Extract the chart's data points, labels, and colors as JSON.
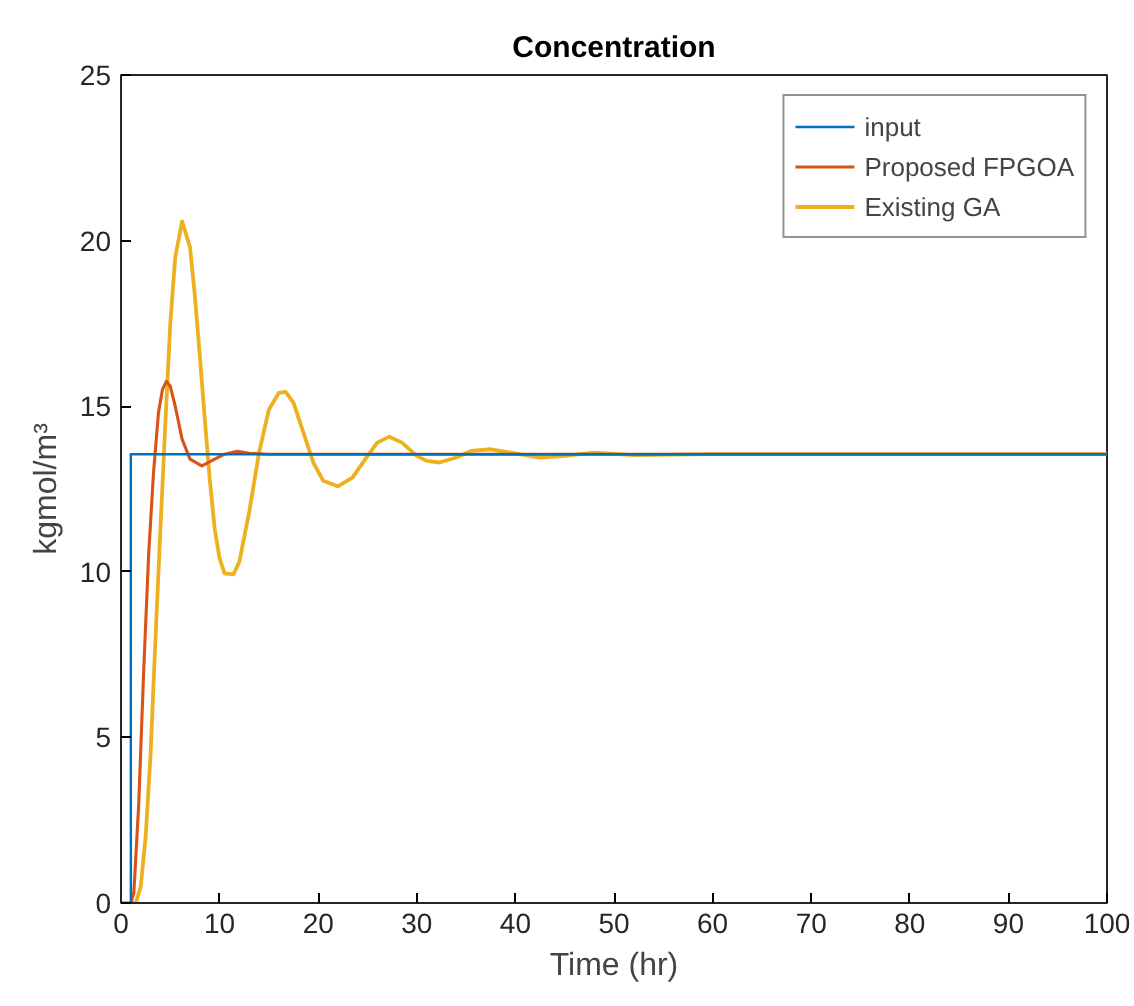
{
  "chart_data": {
    "type": "line",
    "title": "Concentration",
    "xlabel": "Time (hr)",
    "ylabel": "kgmol/m³",
    "xlim": [
      0,
      100
    ],
    "ylim": [
      0,
      25
    ],
    "xticks": [
      0,
      10,
      20,
      30,
      40,
      50,
      60,
      70,
      80,
      90,
      100
    ],
    "yticks": [
      0,
      5,
      10,
      15,
      20,
      25
    ],
    "grid": false,
    "legend": "top right",
    "marker": "none",
    "line_style": "solid",
    "series": [
      {
        "name": "input",
        "color": "#0072bd",
        "x": [
          1,
          1,
          100
        ],
        "values": [
          0,
          13.55,
          13.55
        ]
      },
      {
        "name": "Proposed FPGOA",
        "color": "#d95319",
        "x": [
          1,
          1.3,
          1.8,
          2.3,
          2.8,
          3.3,
          3.8,
          4.2,
          4.6,
          5.0,
          5.5,
          6.2,
          7,
          8.2,
          9.5,
          10.5,
          11.8,
          13,
          15,
          100
        ],
        "values": [
          0,
          0.3,
          3,
          7,
          10.5,
          13,
          14.8,
          15.5,
          15.75,
          15.6,
          15,
          14,
          13.4,
          13.2,
          13.4,
          13.55,
          13.64,
          13.58,
          13.55,
          13.55
        ]
      },
      {
        "name": "Existing GA",
        "color": "#edb120",
        "x": [
          0,
          1.5,
          2,
          2.5,
          3,
          3.5,
          4,
          4.5,
          5,
          5.5,
          6.2,
          7,
          7.5,
          8,
          8.5,
          9,
          9.5,
          10,
          10.5,
          11.4,
          12,
          13,
          14,
          15,
          16,
          16.7,
          17.5,
          18.5,
          19.5,
          20.5,
          22,
          23.5,
          25,
          26,
          27.2,
          28.5,
          30,
          31,
          32.3,
          34,
          35.5,
          37.5,
          39.5,
          42.5,
          45,
          48,
          52,
          60,
          100
        ],
        "values": [
          0,
          0,
          0.5,
          2,
          4.5,
          8,
          11.3,
          14.5,
          17.5,
          19.5,
          20.58,
          19.8,
          18.3,
          16.5,
          14.6,
          12.8,
          11.3,
          10.4,
          9.95,
          9.92,
          10.3,
          11.8,
          13.6,
          14.9,
          15.4,
          15.43,
          15.1,
          14.2,
          13.3,
          12.75,
          12.58,
          12.85,
          13.5,
          13.9,
          14.08,
          13.9,
          13.5,
          13.35,
          13.3,
          13.45,
          13.65,
          13.7,
          13.6,
          13.45,
          13.5,
          13.6,
          13.52,
          13.55,
          13.55
        ]
      }
    ]
  }
}
